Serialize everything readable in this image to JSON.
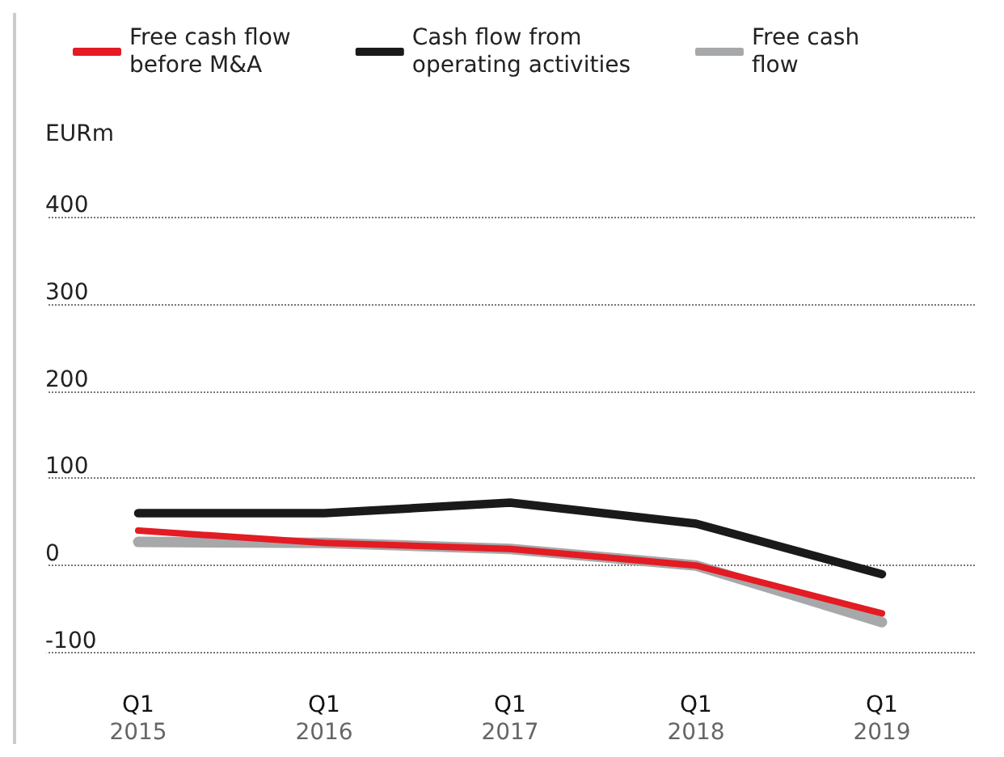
{
  "chart_data": {
    "type": "line",
    "ylabel": "EURm",
    "categories": [
      "Q1\n2015",
      "Q1\n2016",
      "Q1\n2017",
      "Q1\n2018",
      "Q1\n2019"
    ],
    "series": [
      {
        "name": "Free cash flow\nbefore M&A",
        "color": "#e31b23",
        "values": [
          40,
          26,
          19,
          0,
          -55
        ]
      },
      {
        "name": "Cash flow from\noperating activities",
        "color": "#1a1a1a",
        "values": [
          60,
          60,
          72,
          48,
          -10
        ]
      },
      {
        "name": "Free cash\nflow",
        "color": "#a7a8aa",
        "values": [
          27,
          26,
          19,
          0,
          -65
        ]
      }
    ],
    "ylim": [
      -100,
      400
    ],
    "yticks": [
      -100,
      0,
      100,
      200,
      300,
      400
    ],
    "grid": "y",
    "legend": "top",
    "marker": "none",
    "line_style": "solid"
  }
}
